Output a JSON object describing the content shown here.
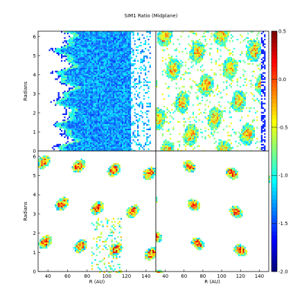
{
  "chart_data": {
    "type": "heatmap",
    "title": "SIM1 Ratio (Midplane)",
    "panels": [
      {
        "name": "top-left",
        "ylabel": "Radians",
        "show_xticks": false,
        "show_yticks": true
      },
      {
        "name": "top-right",
        "ylabel": "",
        "show_xticks": false,
        "show_yticks": false
      },
      {
        "name": "bottom-left",
        "ylabel": "Radians",
        "xlabel": "R (AU)",
        "show_xticks": true,
        "show_yticks": true
      },
      {
        "name": "bottom-right",
        "ylabel": "",
        "xlabel": "R (AU)",
        "show_xticks": true,
        "show_yticks": false
      }
    ],
    "xlabel": "R (AU)",
    "ylabel": "Radians",
    "xlim": [
      30,
      150
    ],
    "ylim": [
      0,
      6.283
    ],
    "xticks": [
      "40",
      "60",
      "80",
      "100",
      "120",
      "140"
    ],
    "xtick_values": [
      40,
      60,
      80,
      100,
      120,
      140
    ],
    "yticks": [
      "0",
      "1",
      "2",
      "3",
      "4",
      "5",
      "6"
    ],
    "ytick_values": [
      0,
      1,
      2,
      3,
      4,
      5,
      6
    ],
    "colorbar": {
      "colormap": "jet",
      "range": [
        -2.0,
        0.5
      ],
      "ticks": [
        "0.5",
        "0.0",
        "-0.5",
        "-1.0",
        "-1.5",
        "-2.0"
      ],
      "tick_values": [
        0.5,
        0.0,
        -0.5,
        -1.0,
        -1.5,
        -2.0
      ]
    },
    "grid": false,
    "colors": {
      "low": "#00007f",
      "mid_low": "#0066ff",
      "mid": "#33ffcc",
      "mid_high": "#ffcc00",
      "high": "#7f0000"
    }
  }
}
